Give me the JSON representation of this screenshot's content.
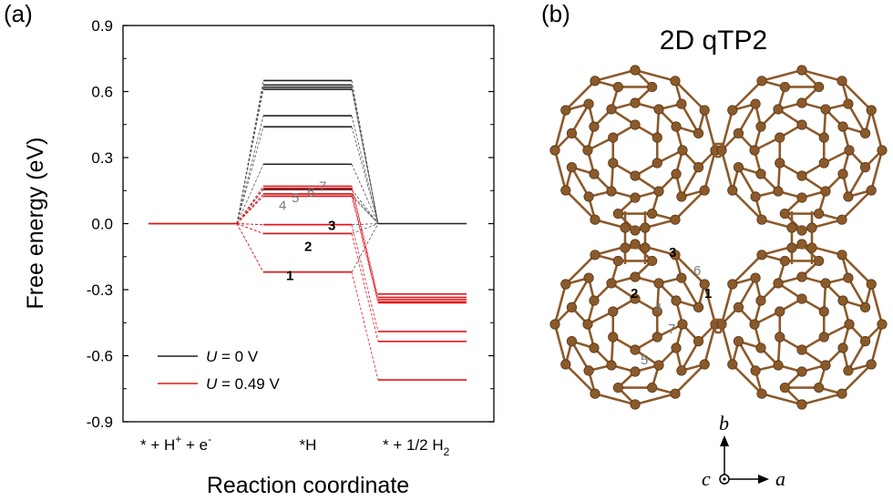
{
  "panels": {
    "a": "(a)",
    "b": "(b)"
  },
  "colors": {
    "u0": "#222222",
    "u049": "#e8141b",
    "site_dark": "#000000",
    "site_gray": "#7a7a7a",
    "atom": "#8b5a2b",
    "bond": "#8b5a2b"
  },
  "chart_data": {
    "type": "line",
    "title": "",
    "xlabel": "Reaction coordinate",
    "ylabel": "Free energy (eV)",
    "ylim": [
      -0.9,
      0.9
    ],
    "yticks": [
      "0.9",
      "0.6",
      "0.3",
      "0.0",
      "-0.3",
      "-0.6",
      "-0.9"
    ],
    "categories": [
      "* + H⁺ + e⁻",
      "*H",
      "* + 1/2 H₂"
    ],
    "category_labels": {
      "c1_main": "* + H",
      "c1_sup1": "+",
      "c1_mid": " + e",
      "c1_sup2": "-",
      "c2": "*H",
      "c3_main": "* + 1/2 H",
      "c3_sub": "2"
    },
    "legend_position": "lower-left",
    "legend": [
      {
        "prefix": "U",
        "suffix": " = 0 V"
      },
      {
        "prefix": "U",
        "suffix": " = 0.49 V"
      }
    ],
    "series": [
      {
        "name": "U = 0 V",
        "values": [
          0.0,
          [
            0.65,
            0.63,
            0.62,
            0.61,
            0.49,
            0.44,
            0.27,
            0.155,
            0.135,
            0.125,
            -0.005,
            -0.045,
            -0.22
          ],
          0.0
        ]
      },
      {
        "name": "U = 0.49 V",
        "values": [
          0.0,
          [
            0.17,
            0.16,
            0.135,
            0.125,
            -0.005,
            -0.045,
            -0.22
          ],
          [
            -0.32,
            -0.335,
            -0.345,
            -0.355,
            -0.36,
            -0.49,
            -0.535,
            -0.71
          ]
        ]
      }
    ],
    "site_annotations": [
      {
        "label": "1",
        "energy": -0.22,
        "tone": "dark"
      },
      {
        "label": "2",
        "energy": -0.045,
        "tone": "dark"
      },
      {
        "label": "3",
        "energy": -0.005,
        "tone": "dark"
      },
      {
        "label": "4",
        "energy": 0.125,
        "tone": "gray"
      },
      {
        "label": "5",
        "energy": 0.135,
        "tone": "gray"
      },
      {
        "label": "6",
        "energy": 0.16,
        "tone": "gray"
      },
      {
        "label": "7",
        "energy": 0.17,
        "tone": "gray"
      }
    ]
  },
  "structure": {
    "title": "2D qTP2",
    "site_labels": [
      {
        "text": "3",
        "tone": "dark"
      },
      {
        "text": "6",
        "tone": "gray"
      },
      {
        "text": "2",
        "tone": "dark"
      },
      {
        "text": "1",
        "tone": "dark"
      },
      {
        "text": "4",
        "tone": "gray"
      },
      {
        "text": "7",
        "tone": "gray"
      },
      {
        "text": "5",
        "tone": "gray"
      }
    ],
    "axes": {
      "b": "b",
      "c": "c",
      "a": "a"
    }
  }
}
